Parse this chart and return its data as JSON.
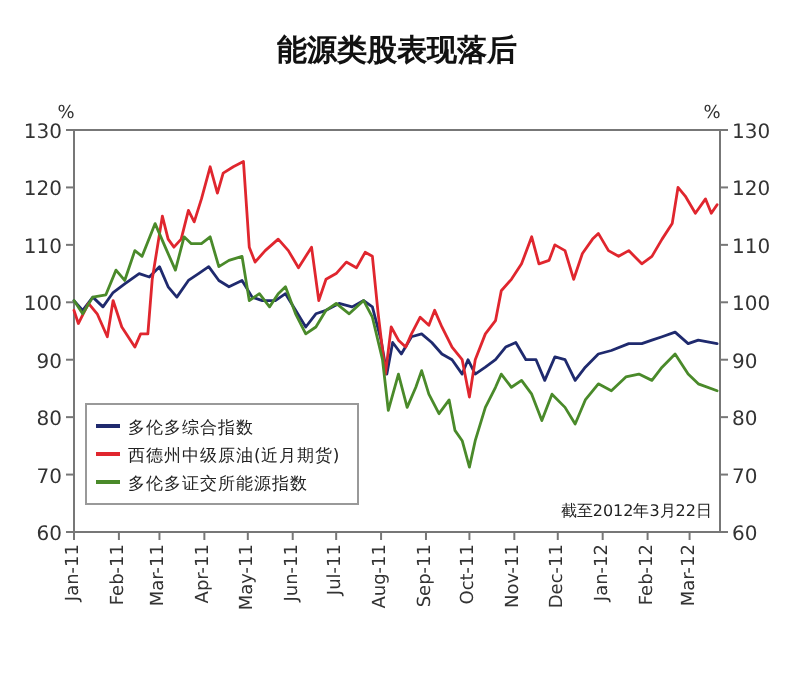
{
  "chart_data": {
    "type": "line",
    "title": "能源类股表现落后",
    "ylabel": "%",
    "y2label": "%",
    "xlim": [
      "2011-01-01",
      "2012-03-22"
    ],
    "xticks": [
      {
        "value": "2011-01-01",
        "label": "Jan-11"
      },
      {
        "value": "2011-02-01",
        "label": "Feb-11"
      },
      {
        "value": "2011-03-01",
        "label": "Mar-11"
      },
      {
        "value": "2011-04-01",
        "label": "Apr-11"
      },
      {
        "value": "2011-05-01",
        "label": "May-11"
      },
      {
        "value": "2011-06-01",
        "label": "Jun-11"
      },
      {
        "value": "2011-07-01",
        "label": "Jul-11"
      },
      {
        "value": "2011-08-01",
        "label": "Aug-11"
      },
      {
        "value": "2011-09-01",
        "label": "Sep-11"
      },
      {
        "value": "2011-10-01",
        "label": "Oct-11"
      },
      {
        "value": "2011-11-01",
        "label": "Nov-11"
      },
      {
        "value": "2011-12-01",
        "label": "Dec-11"
      },
      {
        "value": "2012-01-01",
        "label": "Jan-12"
      },
      {
        "value": "2012-02-01",
        "label": "Feb-12"
      },
      {
        "value": "2012-03-01",
        "label": "Mar-12"
      }
    ],
    "ylim": [
      60,
      130
    ],
    "yticks": [
      60,
      70,
      80,
      90,
      100,
      110,
      120,
      130
    ],
    "y2lim": [
      60,
      130
    ],
    "y2ticks": [
      60,
      70,
      80,
      90,
      100,
      110,
      120,
      130
    ],
    "grid": false,
    "legend": "bottom left",
    "annotations": [
      "截至2012年3月22日"
    ],
    "series": [
      {
        "name": "多伦多综合指数",
        "color": "#1f2a6e",
        "x": [
          "2011-01-01",
          "2011-01-07",
          "2011-01-14",
          "2011-01-21",
          "2011-01-28",
          "2011-02-05",
          "2011-02-15",
          "2011-02-22",
          "2011-03-01",
          "2011-03-07",
          "2011-03-13",
          "2011-03-21",
          "2011-03-28",
          "2011-04-04",
          "2011-04-11",
          "2011-04-18",
          "2011-04-27",
          "2011-05-04",
          "2011-05-11",
          "2011-05-20",
          "2011-05-27",
          "2011-06-03",
          "2011-06-10",
          "2011-06-17",
          "2011-06-24",
          "2011-07-03",
          "2011-07-12",
          "2011-07-20",
          "2011-07-26",
          "2011-08-01",
          "2011-08-05",
          "2011-08-09",
          "2011-08-15",
          "2011-08-22",
          "2011-08-29",
          "2011-09-05",
          "2011-09-12",
          "2011-09-19",
          "2011-09-26",
          "2011-09-30",
          "2011-10-05",
          "2011-10-12",
          "2011-10-19",
          "2011-10-26",
          "2011-11-02",
          "2011-11-09",
          "2011-11-16",
          "2011-11-22",
          "2011-11-29",
          "2011-12-06",
          "2011-12-13",
          "2011-12-20",
          "2011-12-29",
          "2012-01-07",
          "2012-01-19",
          "2012-01-28",
          "2012-02-04",
          "2012-02-11",
          "2012-02-20",
          "2012-02-29",
          "2012-03-07",
          "2012-03-20"
        ],
        "values": [
          100.3,
          98.6,
          100.9,
          99.2,
          101.7,
          103.2,
          105,
          104.4,
          106.2,
          102.7,
          100.9,
          103.8,
          105,
          106.2,
          103.8,
          102.7,
          103.8,
          100.9,
          100.3,
          100.3,
          101.5,
          98.6,
          95.7,
          98,
          98.6,
          99.8,
          99.2,
          100.3,
          99.2,
          93.4,
          87.5,
          93,
          91,
          94,
          94.5,
          93,
          91,
          90,
          87.5,
          90,
          87.5,
          88.7,
          90,
          92.2,
          93,
          90,
          90,
          86.4,
          90.5,
          90,
          86.4,
          88.7,
          91,
          91.6,
          92.8,
          92.8,
          93.4,
          94,
          94.8,
          92.8,
          93.4,
          92.8
        ]
      },
      {
        "name": "西德州中级原油(近月期货)",
        "color": "#e0262e",
        "x": [
          "2011-01-01",
          "2011-01-04",
          "2011-01-11",
          "2011-01-17",
          "2011-01-24",
          "2011-01-28",
          "2011-02-03",
          "2011-02-12",
          "2011-02-16",
          "2011-02-21",
          "2011-02-24",
          "2011-03-03",
          "2011-03-07",
          "2011-03-11",
          "2011-03-16",
          "2011-03-21",
          "2011-03-25",
          "2011-03-30",
          "2011-04-05",
          "2011-04-10",
          "2011-04-14",
          "2011-04-21",
          "2011-04-28",
          "2011-05-02",
          "2011-05-06",
          "2011-05-13",
          "2011-05-22",
          "2011-05-29",
          "2011-06-05",
          "2011-06-14",
          "2011-06-19",
          "2011-06-24",
          "2011-07-01",
          "2011-07-08",
          "2011-07-15",
          "2011-07-21",
          "2011-07-26",
          "2011-07-30",
          "2011-08-04",
          "2011-08-08",
          "2011-08-13",
          "2011-08-18",
          "2011-08-22",
          "2011-08-28",
          "2011-09-03",
          "2011-09-07",
          "2011-09-12",
          "2011-09-19",
          "2011-09-26",
          "2011-10-01",
          "2011-10-05",
          "2011-10-12",
          "2011-10-19",
          "2011-10-23",
          "2011-10-30",
          "2011-11-06",
          "2011-11-13",
          "2011-11-18",
          "2011-11-25",
          "2011-11-29",
          "2011-12-06",
          "2011-12-12",
          "2011-12-18",
          "2011-12-25",
          "2011-12-29",
          "2012-01-05",
          "2012-01-12",
          "2012-01-19",
          "2012-01-28",
          "2012-02-04",
          "2012-02-11",
          "2012-02-18",
          "2012-02-22",
          "2012-02-27",
          "2012-03-05",
          "2012-03-12",
          "2012-03-16",
          "2012-03-20"
        ],
        "values": [
          98.6,
          96.3,
          99.8,
          98,
          94,
          100.3,
          95.7,
          92.2,
          94.5,
          94.5,
          104,
          115,
          111,
          109.6,
          111,
          116,
          114,
          118,
          123.6,
          119,
          122.5,
          123.6,
          124.5,
          109.6,
          107,
          109,
          111,
          109,
          106,
          109.6,
          100.3,
          104,
          105,
          107,
          106,
          108.7,
          108,
          98,
          87.5,
          95.7,
          93.4,
          92.2,
          94.5,
          97.4,
          96,
          98.6,
          95.7,
          92.2,
          90,
          83.5,
          90,
          94.5,
          96.8,
          102,
          104,
          106.7,
          111.4,
          106.7,
          107.3,
          110,
          109,
          104,
          108.5,
          111,
          112,
          109,
          108,
          109,
          106.7,
          108,
          111,
          113.7,
          120,
          118.5,
          115.5,
          118,
          115.5,
          117
        ]
      },
      {
        "name": "多伦多证交所能源指数",
        "color": "#4a8a2a",
        "x": [
          "2011-01-01",
          "2011-01-07",
          "2011-01-14",
          "2011-01-23",
          "2011-01-30",
          "2011-02-05",
          "2011-02-12",
          "2011-02-17",
          "2011-02-26",
          "2011-03-05",
          "2011-03-12",
          "2011-03-18",
          "2011-03-23",
          "2011-03-30",
          "2011-04-05",
          "2011-04-11",
          "2011-04-18",
          "2011-04-27",
          "2011-05-02",
          "2011-05-09",
          "2011-05-16",
          "2011-05-22",
          "2011-05-27",
          "2011-06-03",
          "2011-06-10",
          "2011-06-17",
          "2011-06-24",
          "2011-07-01",
          "2011-07-10",
          "2011-07-20",
          "2011-07-26",
          "2011-08-02",
          "2011-08-06",
          "2011-08-13",
          "2011-08-19",
          "2011-08-25",
          "2011-08-29",
          "2011-09-03",
          "2011-09-10",
          "2011-09-17",
          "2011-09-21",
          "2011-09-26",
          "2011-10-01",
          "2011-10-05",
          "2011-10-12",
          "2011-10-19",
          "2011-10-23",
          "2011-10-30",
          "2011-11-06",
          "2011-11-13",
          "2011-11-20",
          "2011-11-27",
          "2011-12-06",
          "2011-12-13",
          "2011-12-20",
          "2011-12-29",
          "2012-01-07",
          "2012-01-17",
          "2012-01-26",
          "2012-02-04",
          "2012-02-11",
          "2012-02-20",
          "2012-02-29",
          "2012-03-07",
          "2012-03-20"
        ],
        "values": [
          100.3,
          98,
          100.9,
          101.3,
          105.6,
          103.8,
          109,
          108,
          113.7,
          109.6,
          105.6,
          111.4,
          110.2,
          110.2,
          111.4,
          106.2,
          107.3,
          108,
          100.3,
          101.5,
          99.2,
          101.5,
          102.7,
          98,
          94.5,
          95.7,
          98.6,
          99.8,
          98,
          100.3,
          97.4,
          90,
          81.2,
          87.5,
          81.7,
          85.2,
          88.1,
          84,
          80.6,
          83,
          77.7,
          75.9,
          71.3,
          75.9,
          81.7,
          85.2,
          87.5,
          85.2,
          86.4,
          84,
          79.4,
          84,
          81.7,
          78.8,
          83,
          85.8,
          84.6,
          87,
          87.5,
          86.4,
          88.7,
          91,
          87.5,
          85.8,
          84.6
        ]
      }
    ]
  }
}
